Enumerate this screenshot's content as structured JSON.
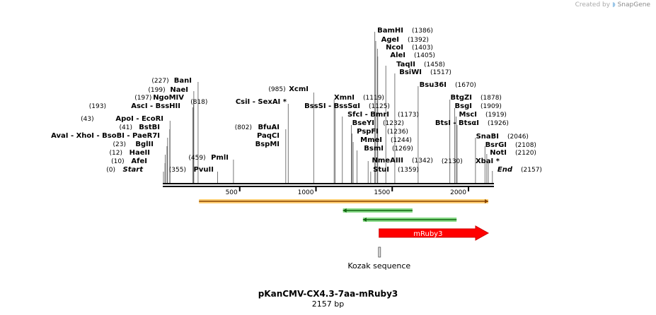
{
  "credit": {
    "prefix": "Created by",
    "brand": "SnapGene"
  },
  "plasmid": {
    "name": "pKanCMV-CX4.3-7aa-mRuby3",
    "length_label": "2157 bp",
    "length": 2157
  },
  "axis": {
    "ticks": [
      500,
      1000,
      1500,
      2000
    ]
  },
  "sites": [
    {
      "label": "BamHI",
      "pos": "(1386)",
      "bp": 1386
    },
    {
      "label": "AgeI",
      "pos": "(1392)",
      "bp": 1392
    },
    {
      "label": "NcoI",
      "pos": "(1403)",
      "bp": 1403
    },
    {
      "label": "AleI",
      "pos": "(1405)",
      "bp": 1405
    },
    {
      "label": "TaqII",
      "pos": "(1458)",
      "bp": 1458
    },
    {
      "label": "BsiWI",
      "pos": "(1517)",
      "bp": 1517
    },
    {
      "label": "Bsu36I",
      "pos": "(1670)",
      "bp": 1670
    },
    {
      "label": "BanI",
      "pos": "(227)",
      "bp": 227
    },
    {
      "label": "NaeI",
      "pos": "(199)",
      "bp": 199
    },
    {
      "label": "NgoMIV",
      "pos": "(197)",
      "bp": 197
    },
    {
      "label": "AscI   - BssHII",
      "pos": "(193)",
      "bp": 193
    },
    {
      "label": "XcmI",
      "pos": "(985)",
      "bp": 985
    },
    {
      "label": "CsiI   - SexAI *",
      "pos": "(818)",
      "bp": 818
    },
    {
      "label": "XmnI",
      "pos": "(1119)",
      "bp": 1119
    },
    {
      "label": "BssSI   - BssSαI",
      "pos": "(1125)",
      "bp": 1125
    },
    {
      "label": "SfcI   - BmrI",
      "pos": "(1173)",
      "bp": 1173
    },
    {
      "label": "BseYI",
      "pos": "(1232)",
      "bp": 1232
    },
    {
      "label": "PspFI",
      "pos": "(1236)",
      "bp": 1236
    },
    {
      "label": "MmeI",
      "pos": "(1244)",
      "bp": 1244
    },
    {
      "label": "BsmI",
      "pos": "(1269)",
      "bp": 1269
    },
    {
      "label": "NmeAIII",
      "pos": "(1342)",
      "bp": 1342
    },
    {
      "label": "StuI",
      "pos": "(1359)",
      "bp": 1359
    },
    {
      "label": "BtgZI",
      "pos": "(1878)",
      "bp": 1878
    },
    {
      "label": "BsgI",
      "pos": "(1909)",
      "bp": 1909
    },
    {
      "label": "MscI",
      "pos": "(1919)",
      "bp": 1919
    },
    {
      "label": "BtsI   - BtsαI",
      "pos": "(1926)",
      "bp": 1926
    },
    {
      "label": "SnaBI",
      "pos": "(2046)",
      "bp": 2046
    },
    {
      "label": "BsrGI",
      "pos": "(2108)",
      "bp": 2108
    },
    {
      "label": "NotI",
      "pos": "(2120)",
      "bp": 2120
    },
    {
      "label": "XbaI  *",
      "pos": "(2130)",
      "bp": 2130
    },
    {
      "label": "End",
      "pos": "(2157)",
      "bp": 2157
    },
    {
      "label": "ApoI   - EcoRI",
      "pos": "(43)",
      "bp": 43
    },
    {
      "label": "BstBI",
      "pos": "(41)",
      "bp": 41
    },
    {
      "label": "AvaI   - XhoI   - BsoBI   - PaeR7I",
      "pos": "(27)",
      "bp": 27
    },
    {
      "label": "BglII",
      "pos": "(23)",
      "bp": 23
    },
    {
      "label": "HaeII",
      "pos": "(12)",
      "bp": 12
    },
    {
      "label": "AfeI",
      "pos": "(10)",
      "bp": 10
    },
    {
      "label": "Start",
      "pos": "(0)",
      "bp": 0
    },
    {
      "label": "BfuAI",
      "pos": "(802)",
      "bp": 802
    },
    {
      "label": "PaqCI",
      "pos": "",
      "bp": 802
    },
    {
      "label": "BspMI",
      "pos": "",
      "bp": 802
    },
    {
      "label": "PmlI",
      "pos": "(459)",
      "bp": 459
    },
    {
      "label": "PvuII",
      "pos": "(355)",
      "bp": 355
    }
  ],
  "features": [
    {
      "name": "orange-feature",
      "start": 233,
      "end": 2130,
      "direction": "forward",
      "color": "#ffa500"
    },
    {
      "name": "green-feature-1",
      "start": 1177,
      "end": 1633,
      "direction": "reverse",
      "color": "#22bb22"
    },
    {
      "name": "green-feature-2",
      "start": 1308,
      "end": 1922,
      "direction": "reverse",
      "color": "#22bb22"
    },
    {
      "name": "mRuby3",
      "label": "mRuby3",
      "start": 1414,
      "end": 2130,
      "direction": "forward",
      "color": "#ff0000"
    },
    {
      "name": "Kozak sequence",
      "label": "Kozak sequence",
      "start": 1405,
      "end": 1413,
      "direction": "none",
      "color": "#cccccc"
    }
  ]
}
